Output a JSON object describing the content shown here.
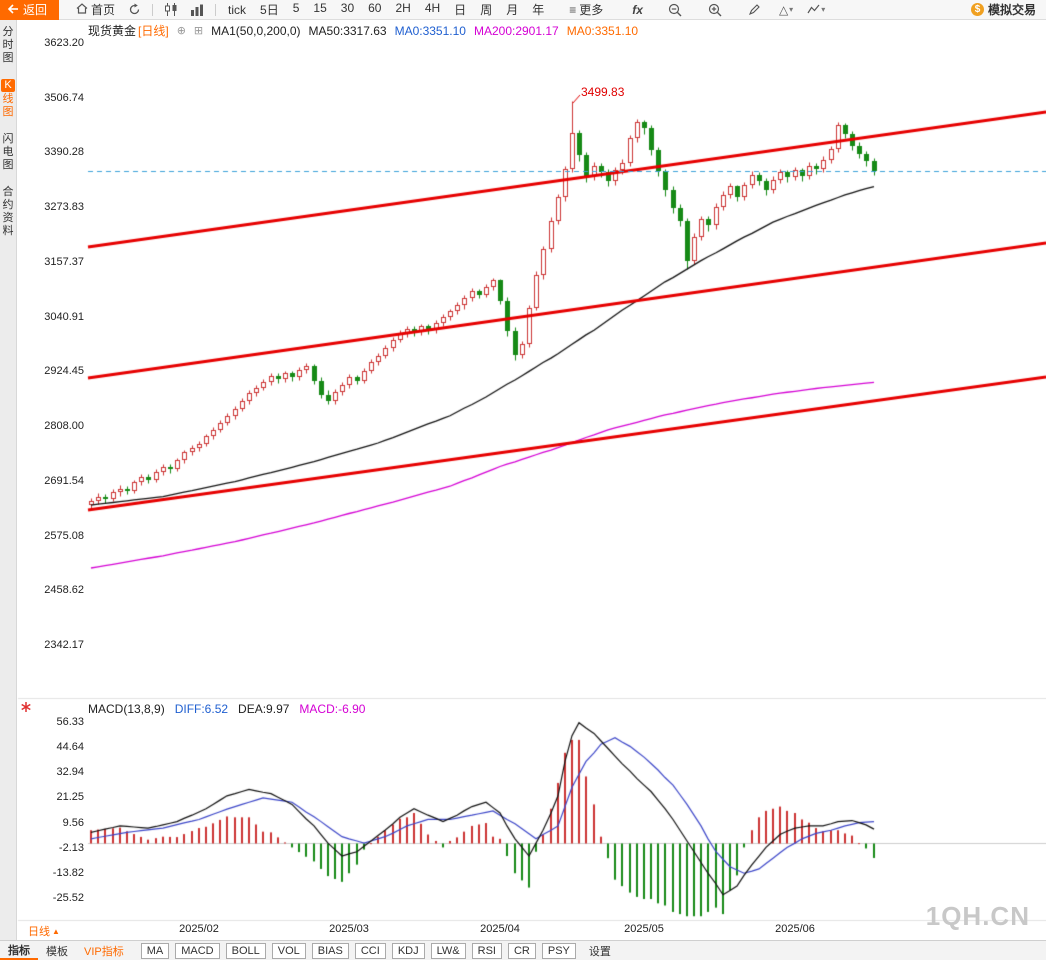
{
  "toolbar": {
    "back": "返回",
    "home": "首页",
    "tick": "tick",
    "five_day": "5日",
    "intervals": [
      "5",
      "15",
      "30",
      "60",
      "2H",
      "4H",
      "日",
      "周",
      "月",
      "年"
    ],
    "more": "更多",
    "fx": "fx",
    "sim_trade": "模拟交易"
  },
  "sidebar": {
    "items": [
      {
        "label": "分时图",
        "key": "time-chart",
        "active": false
      },
      {
        "label": "K线图",
        "key": "kline-chart",
        "active": true
      },
      {
        "label": "闪电图",
        "key": "lightning-chart",
        "active": false
      },
      {
        "label": "合约资料",
        "key": "contract-info",
        "active": false
      }
    ]
  },
  "price_legend": {
    "symbol": "现货黄金",
    "period": "[日线]",
    "ma_group": "MA1(50,0,200,0)",
    "items": [
      {
        "label": "MA50:3317.63",
        "color": "#222222"
      },
      {
        "label": "MA0:3351.10",
        "color": "#1f5fd0"
      },
      {
        "label": "MA200:2901.17",
        "color": "#d400d4"
      },
      {
        "label": "MA0:3351.10",
        "color": "#ff6a00"
      }
    ]
  },
  "macd_legend": {
    "items": [
      {
        "label": "MACD(13,8,9)",
        "color": "#222222"
      },
      {
        "label": "DIFF:6.52",
        "color": "#1f5fd0"
      },
      {
        "label": "DEA:9.97",
        "color": "#222222"
      },
      {
        "label": "MACD:-6.90",
        "color": "#d400d4"
      }
    ]
  },
  "bottom": {
    "period_label": "日线",
    "tabs": [
      "指标",
      "模板",
      "VIP指标"
    ],
    "indicators": [
      "MA",
      "MACD",
      "BOLL",
      "VOL",
      "BIAS",
      "CCI",
      "KDJ",
      "LW&",
      "RSI",
      "CR",
      "PSY"
    ],
    "settings": "设置"
  },
  "watermark": "1QH.CN",
  "colors": {
    "accent": "#ff6a00",
    "up": "#cc3333",
    "down": "#168a16",
    "channel": "#e60000",
    "ma50": "#111111",
    "ma200": "#d400d4",
    "dashed": "#3aa0d8",
    "diff_line": "#111111",
    "dea_line": "#3c46c8"
  },
  "chart_data": {
    "type": "candlestick",
    "symbol": "现货黄金",
    "period": "日线",
    "current_price": 3351.1,
    "peak": {
      "index": 67,
      "price": 3499.83,
      "label": "3499.83"
    },
    "price_axis": {
      "ticks": [
        "3623.20",
        "3506.74",
        "3390.28",
        "3273.83",
        "3157.37",
        "3040.91",
        "2924.45",
        "2808.00",
        "2691.54",
        "2575.08",
        "2458.62",
        "2342.17"
      ]
    },
    "x_labels": [
      {
        "label": "2025/02",
        "index": 15
      },
      {
        "label": "2025/03",
        "index": 36
      },
      {
        "label": "2025/04",
        "index": 57
      },
      {
        "label": "2025/05",
        "index": 77
      },
      {
        "label": "2025/06",
        "index": 98
      }
    ],
    "channel_lines": [
      {
        "left": 3189.0,
        "right": 3476.4
      },
      {
        "left": 2910.3,
        "right": 3197.6
      },
      {
        "left": 2629.4,
        "right": 2912.5
      }
    ],
    "ma50_keypoints": [
      [
        0,
        2640
      ],
      [
        10,
        2658
      ],
      [
        20,
        2690
      ],
      [
        30,
        2728
      ],
      [
        40,
        2772
      ],
      [
        50,
        2830
      ],
      [
        55,
        2870
      ],
      [
        60,
        2915
      ],
      [
        65,
        2962
      ],
      [
        70,
        3012
      ],
      [
        75,
        3065
      ],
      [
        80,
        3115
      ],
      [
        85,
        3160
      ],
      [
        90,
        3202
      ],
      [
        95,
        3242
      ],
      [
        100,
        3272
      ],
      [
        105,
        3300
      ],
      [
        109,
        3317.63
      ]
    ],
    "ma200_keypoints": [
      [
        0,
        2506
      ],
      [
        10,
        2532
      ],
      [
        20,
        2562
      ],
      [
        30,
        2598
      ],
      [
        40,
        2638
      ],
      [
        50,
        2680
      ],
      [
        57,
        2722
      ],
      [
        65,
        2762
      ],
      [
        72,
        2800
      ],
      [
        80,
        2832
      ],
      [
        88,
        2858
      ],
      [
        95,
        2876
      ],
      [
        102,
        2890
      ],
      [
        109,
        2901.17
      ]
    ],
    "candles": [
      [
        2640,
        2656,
        2634,
        2648
      ],
      [
        2648,
        2665,
        2642,
        2658
      ],
      [
        2658,
        2663,
        2645,
        2652
      ],
      [
        2652,
        2674,
        2648,
        2668
      ],
      [
        2668,
        2682,
        2660,
        2675
      ],
      [
        2675,
        2681,
        2663,
        2670
      ],
      [
        2670,
        2694,
        2666,
        2688
      ],
      [
        2688,
        2706,
        2682,
        2700
      ],
      [
        2700,
        2705,
        2687,
        2694
      ],
      [
        2694,
        2716,
        2690,
        2710
      ],
      [
        2710,
        2728,
        2704,
        2722
      ],
      [
        2722,
        2727,
        2709,
        2716
      ],
      [
        2716,
        2741,
        2712,
        2735
      ],
      [
        2735,
        2758,
        2730,
        2752
      ],
      [
        2752,
        2768,
        2746,
        2762
      ],
      [
        2762,
        2776,
        2754,
        2770
      ],
      [
        2770,
        2792,
        2766,
        2786
      ],
      [
        2786,
        2806,
        2780,
        2800
      ],
      [
        2800,
        2821,
        2795,
        2815
      ],
      [
        2815,
        2836,
        2810,
        2830
      ],
      [
        2830,
        2851,
        2824,
        2845
      ],
      [
        2845,
        2868,
        2840,
        2862
      ],
      [
        2862,
        2884,
        2856,
        2878
      ],
      [
        2878,
        2896,
        2872,
        2890
      ],
      [
        2890,
        2908,
        2884,
        2902
      ],
      [
        2902,
        2921,
        2896,
        2915
      ],
      [
        2915,
        2920,
        2900,
        2908
      ],
      [
        2908,
        2926,
        2902,
        2920
      ],
      [
        2920,
        2925,
        2904,
        2912
      ],
      [
        2912,
        2934,
        2906,
        2928
      ],
      [
        2928,
        2942,
        2920,
        2935
      ],
      [
        2935,
        2940,
        2898,
        2905
      ],
      [
        2905,
        2912,
        2868,
        2875
      ],
      [
        2875,
        2885,
        2855,
        2862
      ],
      [
        2862,
        2886,
        2856,
        2880
      ],
      [
        2880,
        2901,
        2874,
        2895
      ],
      [
        2895,
        2918,
        2890,
        2912
      ],
      [
        2912,
        2917,
        2897,
        2905
      ],
      [
        2905,
        2931,
        2900,
        2925
      ],
      [
        2925,
        2951,
        2920,
        2945
      ],
      [
        2945,
        2964,
        2938,
        2958
      ],
      [
        2958,
        2981,
        2952,
        2975
      ],
      [
        2975,
        2998,
        2968,
        2992
      ],
      [
        2992,
        3012,
        2986,
        3005
      ],
      [
        3005,
        3022,
        2998,
        3015
      ],
      [
        3015,
        3020,
        3000,
        3008
      ],
      [
        3008,
        3026,
        3002,
        3020
      ],
      [
        3020,
        3025,
        3004,
        3012
      ],
      [
        3012,
        3034,
        3006,
        3028
      ],
      [
        3028,
        3046,
        3022,
        3040
      ],
      [
        3040,
        3058,
        3034,
        3052
      ],
      [
        3052,
        3071,
        3046,
        3065
      ],
      [
        3065,
        3086,
        3058,
        3080
      ],
      [
        3080,
        3101,
        3074,
        3095
      ],
      [
        3095,
        3100,
        3080,
        3088
      ],
      [
        3088,
        3111,
        3082,
        3105
      ],
      [
        3105,
        3124,
        3098,
        3118
      ],
      [
        3118,
        3122,
        3068,
        3075
      ],
      [
        3075,
        3082,
        3000,
        3010
      ],
      [
        3010,
        3018,
        2948,
        2960
      ],
      [
        2960,
        2990,
        2952,
        2982
      ],
      [
        2982,
        3066,
        2976,
        3060
      ],
      [
        3060,
        3138,
        3054,
        3130
      ],
      [
        3130,
        3192,
        3122,
        3185
      ],
      [
        3185,
        3252,
        3178,
        3245
      ],
      [
        3245,
        3302,
        3238,
        3295
      ],
      [
        3295,
        3362,
        3288,
        3355
      ],
      [
        3355,
        3499.83,
        3348,
        3432
      ],
      [
        3432,
        3438,
        3372,
        3385
      ],
      [
        3385,
        3392,
        3328,
        3340
      ],
      [
        3340,
        3370,
        3332,
        3362
      ],
      [
        3362,
        3368,
        3338,
        3348
      ],
      [
        3348,
        3355,
        3318,
        3330
      ],
      [
        3330,
        3360,
        3322,
        3352
      ],
      [
        3352,
        3376,
        3344,
        3368
      ],
      [
        3368,
        3428,
        3362,
        3420
      ],
      [
        3420,
        3462,
        3412,
        3455
      ],
      [
        3455,
        3460,
        3430,
        3442
      ],
      [
        3442,
        3448,
        3385,
        3395
      ],
      [
        3395,
        3402,
        3340,
        3350
      ],
      [
        3350,
        3356,
        3298,
        3310
      ],
      [
        3310,
        3318,
        3262,
        3272
      ],
      [
        3272,
        3280,
        3234,
        3245
      ],
      [
        3245,
        3250,
        3142,
        3160
      ],
      [
        3160,
        3218,
        3152,
        3210
      ],
      [
        3210,
        3256,
        3204,
        3248
      ],
      [
        3248,
        3254,
        3224,
        3235
      ],
      [
        3235,
        3282,
        3228,
        3275
      ],
      [
        3275,
        3308,
        3268,
        3300
      ],
      [
        3300,
        3326,
        3294,
        3318
      ],
      [
        3318,
        3322,
        3286,
        3295
      ],
      [
        3295,
        3328,
        3290,
        3320
      ],
      [
        3320,
        3350,
        3314,
        3342
      ],
      [
        3342,
        3348,
        3322,
        3330
      ],
      [
        3330,
        3336,
        3300,
        3310
      ],
      [
        3310,
        3340,
        3304,
        3332
      ],
      [
        3332,
        3356,
        3326,
        3348
      ],
      [
        3348,
        3354,
        3328,
        3338
      ],
      [
        3338,
        3360,
        3332,
        3352
      ],
      [
        3352,
        3358,
        3330,
        3340
      ],
      [
        3340,
        3370,
        3334,
        3362
      ],
      [
        3362,
        3368,
        3344,
        3355
      ],
      [
        3355,
        3382,
        3348,
        3375
      ],
      [
        3375,
        3405,
        3368,
        3398
      ],
      [
        3398,
        3455,
        3392,
        3448
      ],
      [
        3448,
        3452,
        3420,
        3430
      ],
      [
        3430,
        3436,
        3396,
        3405
      ],
      [
        3405,
        3412,
        3378,
        3388
      ],
      [
        3388,
        3394,
        3362,
        3372
      ],
      [
        3372,
        3378,
        3342,
        3351.1
      ]
    ],
    "macd": {
      "ticks": [
        "56.33",
        "44.64",
        "32.94",
        "21.25",
        "9.56",
        "-2.13",
        "-13.82",
        "-25.52"
      ],
      "diff_keypoints": [
        [
          0,
          5
        ],
        [
          4,
          8
        ],
        [
          8,
          7
        ],
        [
          12,
          10
        ],
        [
          16,
          16
        ],
        [
          19,
          22
        ],
        [
          22,
          25
        ],
        [
          25,
          23
        ],
        [
          28,
          18
        ],
        [
          31,
          8
        ],
        [
          33,
          0
        ],
        [
          35,
          -6
        ],
        [
          37,
          -4
        ],
        [
          39,
          1
        ],
        [
          41,
          6
        ],
        [
          43,
          12
        ],
        [
          45,
          16
        ],
        [
          47,
          13
        ],
        [
          49,
          10
        ],
        [
          51,
          13
        ],
        [
          53,
          17
        ],
        [
          55,
          19
        ],
        [
          57,
          14
        ],
        [
          59,
          2
        ],
        [
          61,
          -6
        ],
        [
          63,
          6
        ],
        [
          65,
          22
        ],
        [
          66,
          38
        ],
        [
          67,
          50
        ],
        [
          68,
          56
        ],
        [
          70,
          51
        ],
        [
          72,
          44
        ],
        [
          74,
          37
        ],
        [
          76,
          30
        ],
        [
          78,
          24
        ],
        [
          80,
          16
        ],
        [
          82,
          6
        ],
        [
          84,
          -4
        ],
        [
          86,
          -14
        ],
        [
          88,
          -24
        ],
        [
          90,
          -20
        ],
        [
          92,
          -10
        ],
        [
          94,
          -2
        ],
        [
          96,
          4
        ],
        [
          98,
          7
        ],
        [
          100,
          8
        ],
        [
          102,
          8
        ],
        [
          104,
          10
        ],
        [
          106,
          10.5
        ],
        [
          108,
          8.5
        ],
        [
          109,
          6.52
        ]
      ],
      "dea_keypoints": [
        [
          0,
          2
        ],
        [
          5,
          5
        ],
        [
          10,
          7
        ],
        [
          15,
          11
        ],
        [
          20,
          17
        ],
        [
          24,
          21
        ],
        [
          28,
          19
        ],
        [
          32,
          10
        ],
        [
          35,
          3
        ],
        [
          38,
          0
        ],
        [
          41,
          3
        ],
        [
          44,
          8
        ],
        [
          47,
          11
        ],
        [
          50,
          11
        ],
        [
          53,
          13
        ],
        [
          56,
          15
        ],
        [
          59,
          9
        ],
        [
          62,
          2
        ],
        [
          65,
          8
        ],
        [
          67,
          26
        ],
        [
          69,
          38
        ],
        [
          71,
          46
        ],
        [
          73,
          49
        ],
        [
          75,
          45
        ],
        [
          77,
          40
        ],
        [
          79,
          34
        ],
        [
          81,
          27
        ],
        [
          83,
          18
        ],
        [
          85,
          8
        ],
        [
          87,
          -4
        ],
        [
          89,
          -11
        ],
        [
          91,
          -14
        ],
        [
          93,
          -12
        ],
        [
          95,
          -7
        ],
        [
          97,
          -2
        ],
        [
          99,
          2
        ],
        [
          101,
          4.5
        ],
        [
          103,
          6
        ],
        [
          105,
          8
        ],
        [
          107,
          9.5
        ],
        [
          109,
          9.97
        ]
      ]
    }
  }
}
